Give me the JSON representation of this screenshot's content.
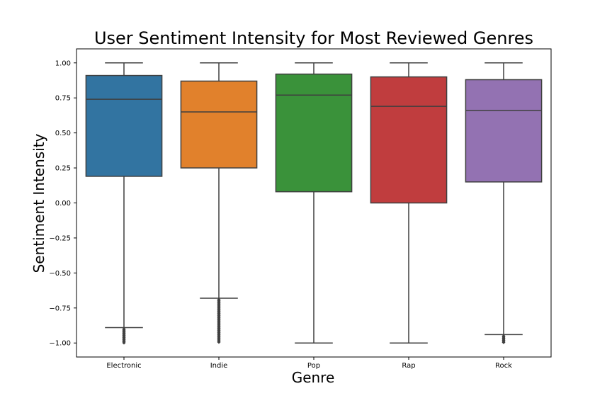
{
  "chart_data": {
    "type": "box",
    "title": "User Sentiment Intensity for Most Reviewed Genres",
    "xlabel": "Genre",
    "ylabel": "Sentiment Intensity",
    "ylim": [
      -1.1,
      1.1
    ],
    "yticks": [
      "1.00",
      "0.75",
      "0.50",
      "0.25",
      "0.00",
      "−0.25",
      "−0.50",
      "−0.75",
      "−1.00"
    ],
    "ytick_values": [
      1.0,
      0.75,
      0.5,
      0.25,
      0.0,
      -0.25,
      -0.5,
      -0.75,
      -1.0
    ],
    "grid": false,
    "categories": [
      "Electronic",
      "Indie",
      "Pop",
      "Rap",
      "Rock"
    ],
    "boxes": [
      {
        "name": "Electronic",
        "color": "#3274a1",
        "q1": 0.19,
        "median": 0.74,
        "q3": 0.91,
        "whisker_low": -0.89,
        "whisker_high": 1.0,
        "outliers": {
          "from": -0.89,
          "to": -1.0
        }
      },
      {
        "name": "Indie",
        "color": "#e1812c",
        "q1": 0.25,
        "median": 0.65,
        "q3": 0.87,
        "whisker_low": -0.68,
        "whisker_high": 1.0,
        "outliers": {
          "from": -0.68,
          "to": -1.0
        }
      },
      {
        "name": "Pop",
        "color": "#3a923a",
        "q1": 0.08,
        "median": 0.77,
        "q3": 0.92,
        "whisker_low": -1.0,
        "whisker_high": 1.0,
        "outliers": null
      },
      {
        "name": "Rap",
        "color": "#c03d3e",
        "q1": 0.0,
        "median": 0.69,
        "q3": 0.9,
        "whisker_low": -1.0,
        "whisker_high": 1.0,
        "outliers": null
      },
      {
        "name": "Rock",
        "color": "#9372b2",
        "q1": 0.15,
        "median": 0.66,
        "q3": 0.88,
        "whisker_low": -0.94,
        "whisker_high": 1.0,
        "outliers": {
          "from": -0.94,
          "to": -1.0
        }
      }
    ]
  }
}
